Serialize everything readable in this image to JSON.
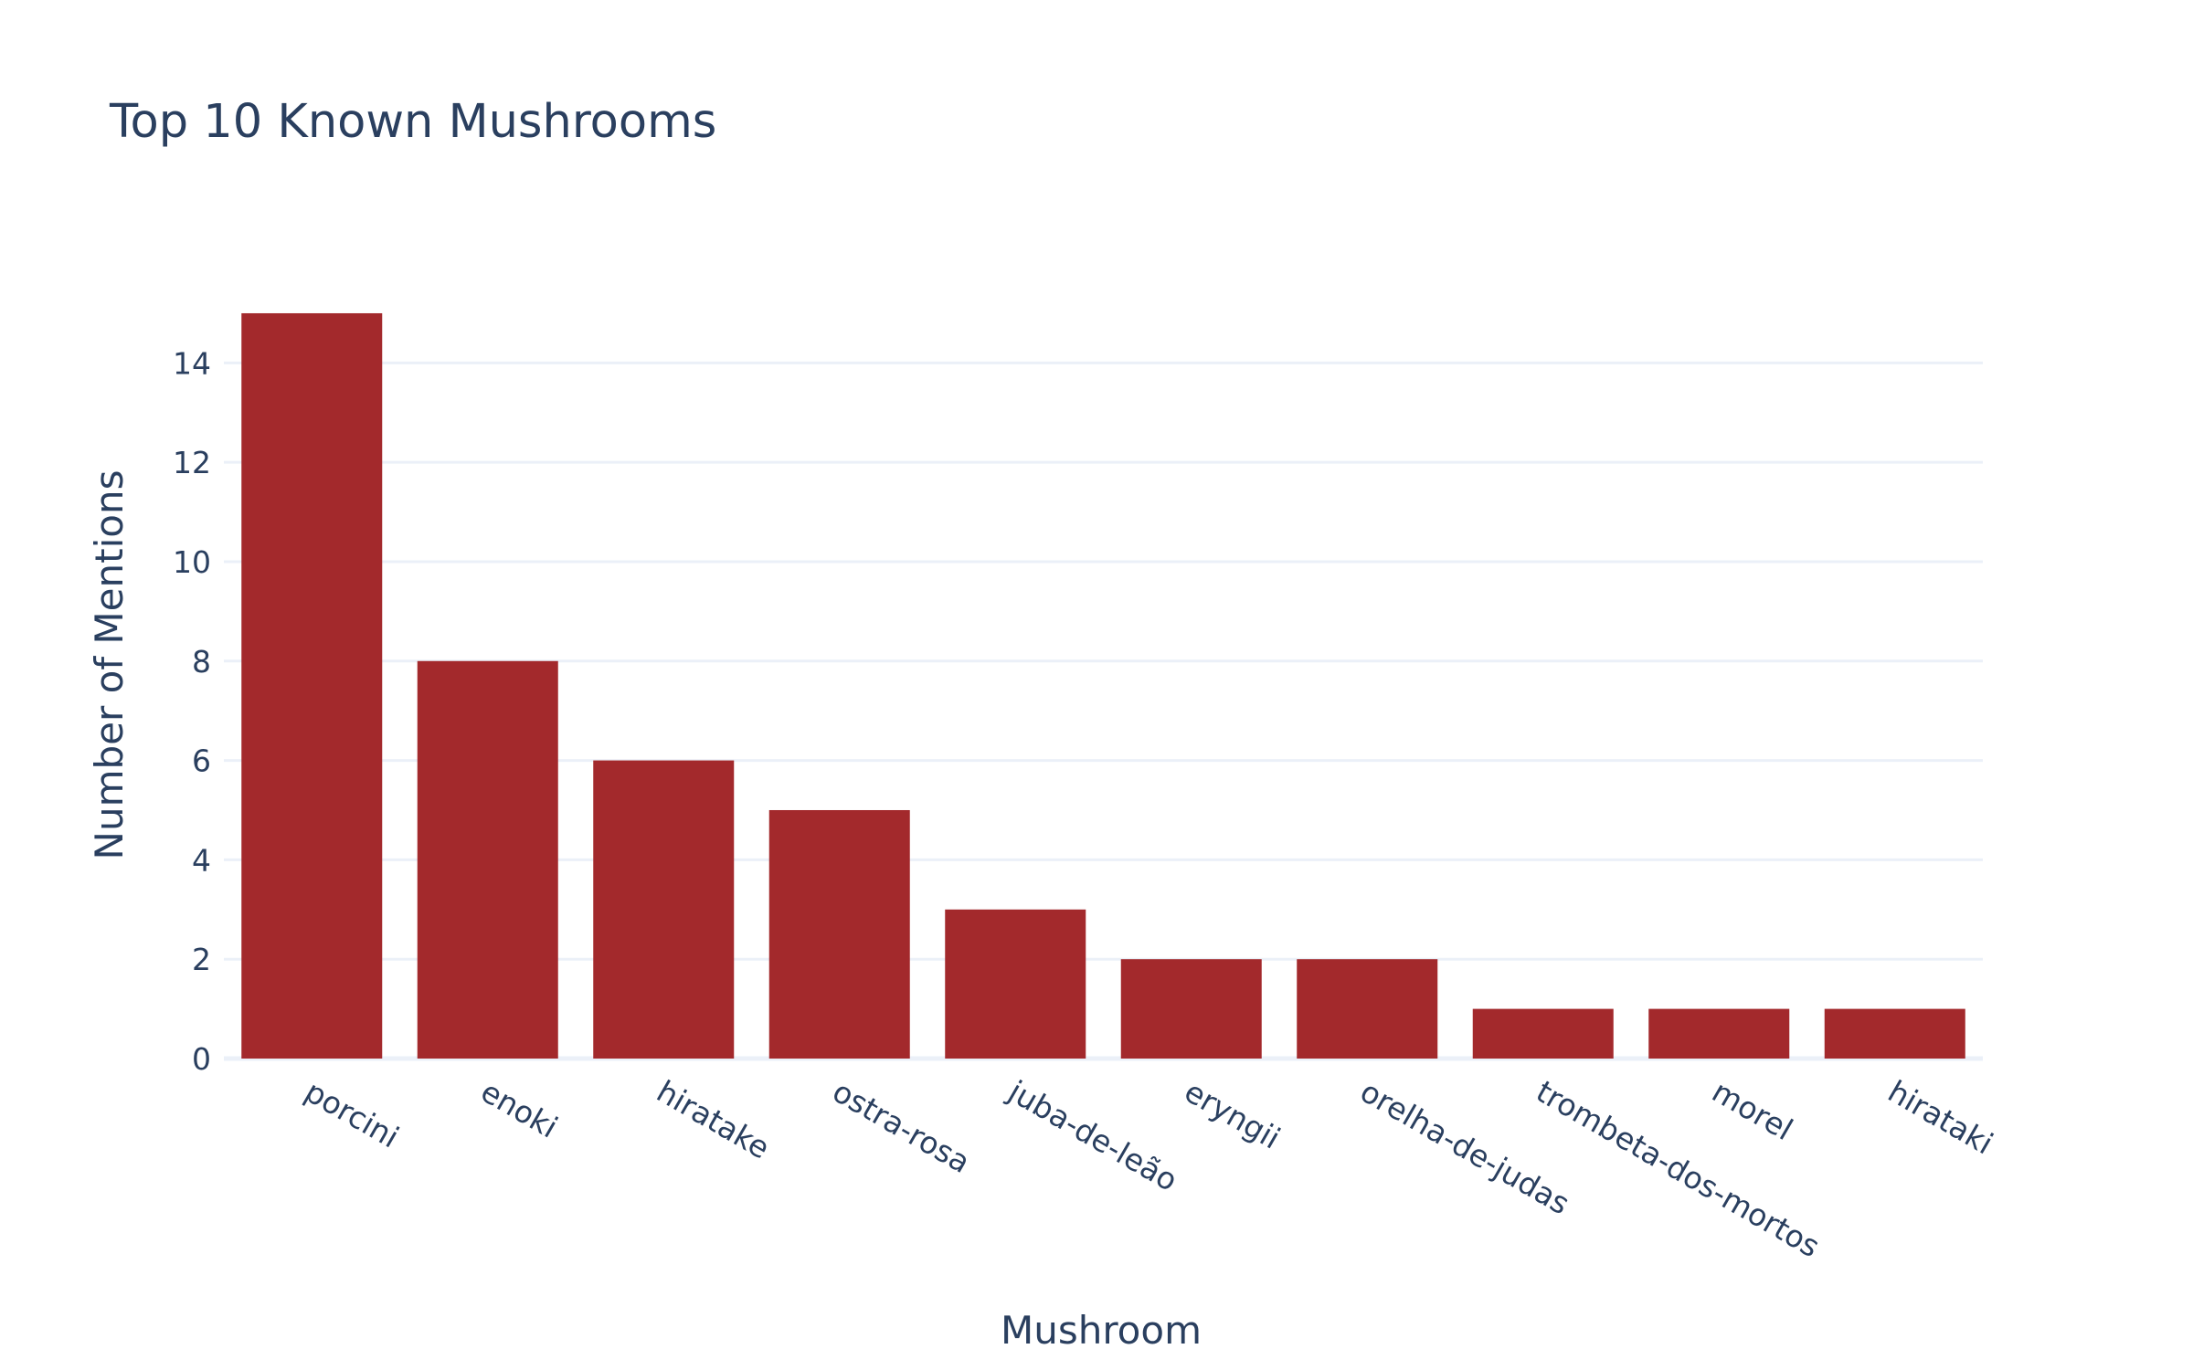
{
  "chart_data": {
    "type": "bar",
    "title": "Top 10 Known Mushrooms",
    "xlabel": "Mushroom",
    "ylabel": "Number of Mentions",
    "categories": [
      "porcini",
      "enoki",
      "hiratake",
      "ostra-rosa",
      "juba-de-leão",
      "eryngii",
      "orelha-de-judas",
      "trombeta-dos-mortos",
      "morel",
      "hirataki"
    ],
    "values": [
      15,
      8,
      6,
      5,
      3,
      2,
      2,
      1,
      1,
      1
    ],
    "ylim": [
      0,
      15.79
    ],
    "yticks": [
      0,
      2,
      4,
      6,
      8,
      10,
      12,
      14
    ],
    "bar_color": "#a3292c",
    "grid": true,
    "legend": "none"
  }
}
